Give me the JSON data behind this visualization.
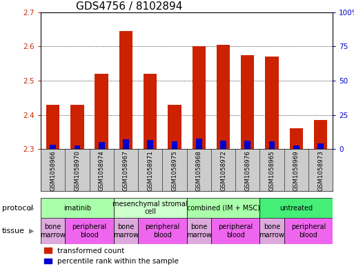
{
  "title": "GDS4756 / 8102894",
  "samples": [
    "GSM1058966",
    "GSM1058970",
    "GSM1058974",
    "GSM1058967",
    "GSM1058971",
    "GSM1058975",
    "GSM1058968",
    "GSM1058972",
    "GSM1058976",
    "GSM1058965",
    "GSM1058969",
    "GSM1058973"
  ],
  "transformed_count": [
    2.43,
    2.43,
    2.52,
    2.645,
    2.52,
    2.43,
    2.6,
    2.605,
    2.575,
    2.57,
    2.36,
    2.385
  ],
  "percentile_rank": [
    3.0,
    2.5,
    5.0,
    7.0,
    6.5,
    5.5,
    7.5,
    6.0,
    6.0,
    5.5,
    2.5,
    4.0
  ],
  "bar_bottom": 2.3,
  "ylim_left": [
    2.3,
    2.7
  ],
  "ylim_right": [
    0,
    100
  ],
  "yticks_left": [
    2.3,
    2.4,
    2.5,
    2.6,
    2.7
  ],
  "yticks_right": [
    0,
    25,
    50,
    75,
    100
  ],
  "ytick_labels_right": [
    "0",
    "25",
    "50",
    "75",
    "100%"
  ],
  "red_color": "#cc2200",
  "blue_color": "#0000cc",
  "protocols": [
    {
      "label": "imatinib",
      "start": 0,
      "end": 3,
      "color": "#aaffaa"
    },
    {
      "label": "mesenchymal stromal\ncell",
      "start": 3,
      "end": 6,
      "color": "#ccffcc"
    },
    {
      "label": "combined (IM + MSC)",
      "start": 6,
      "end": 9,
      "color": "#aaffaa"
    },
    {
      "label": "untreated",
      "start": 9,
      "end": 12,
      "color": "#44ee77"
    }
  ],
  "tissues": [
    {
      "label": "bone\nmarrow",
      "start": 0,
      "end": 1,
      "color": "#ddaadd"
    },
    {
      "label": "peripheral\nblood",
      "start": 1,
      "end": 3,
      "color": "#ee66ee"
    },
    {
      "label": "bone\nmarrow",
      "start": 3,
      "end": 4,
      "color": "#ddaadd"
    },
    {
      "label": "peripheral\nblood",
      "start": 4,
      "end": 6,
      "color": "#ee66ee"
    },
    {
      "label": "bone\nmarrow",
      "start": 6,
      "end": 7,
      "color": "#ddaadd"
    },
    {
      "label": "peripheral\nblood",
      "start": 7,
      "end": 9,
      "color": "#ee66ee"
    },
    {
      "label": "bone\nmarrow",
      "start": 9,
      "end": 10,
      "color": "#ddaadd"
    },
    {
      "label": "peripheral\nblood",
      "start": 10,
      "end": 12,
      "color": "#ee66ee"
    }
  ],
  "legend_red": "transformed count",
  "legend_blue": "percentile rank within the sample",
  "background_color": "#ffffff",
  "plot_bg_color": "#ffffff",
  "xlabels_bg_color": "#cccccc",
  "title_fontsize": 11,
  "tick_fontsize": 7.5,
  "label_fontsize": 8,
  "bar_width": 0.55
}
